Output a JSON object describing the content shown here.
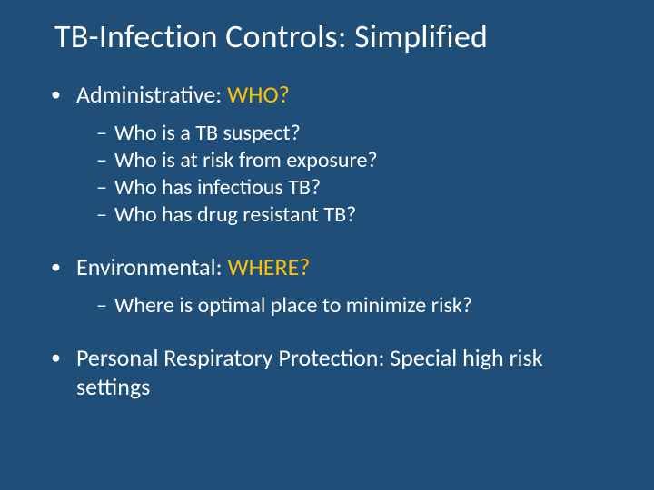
{
  "colors": {
    "background": "#1f4e79",
    "text": "#ffffff",
    "accent": "#ffc000"
  },
  "title": "TB-Infection Controls: Simplified",
  "sections": [
    {
      "label": "Administrative:  ",
      "accent": "WHO?",
      "subs": [
        "Who is a TB suspect?",
        "Who is at risk from exposure?",
        "Who has infectious TB?",
        "Who has drug resistant TB?"
      ]
    },
    {
      "label": "Environmental:  ",
      "accent": "WHERE?",
      "subs": [
        "Where is optimal place to minimize risk?"
      ]
    },
    {
      "label": "Personal Respiratory Protection:   Special high risk settings",
      "accent": "",
      "subs": []
    }
  ],
  "bullets": {
    "L1": "•",
    "L2": "–"
  }
}
